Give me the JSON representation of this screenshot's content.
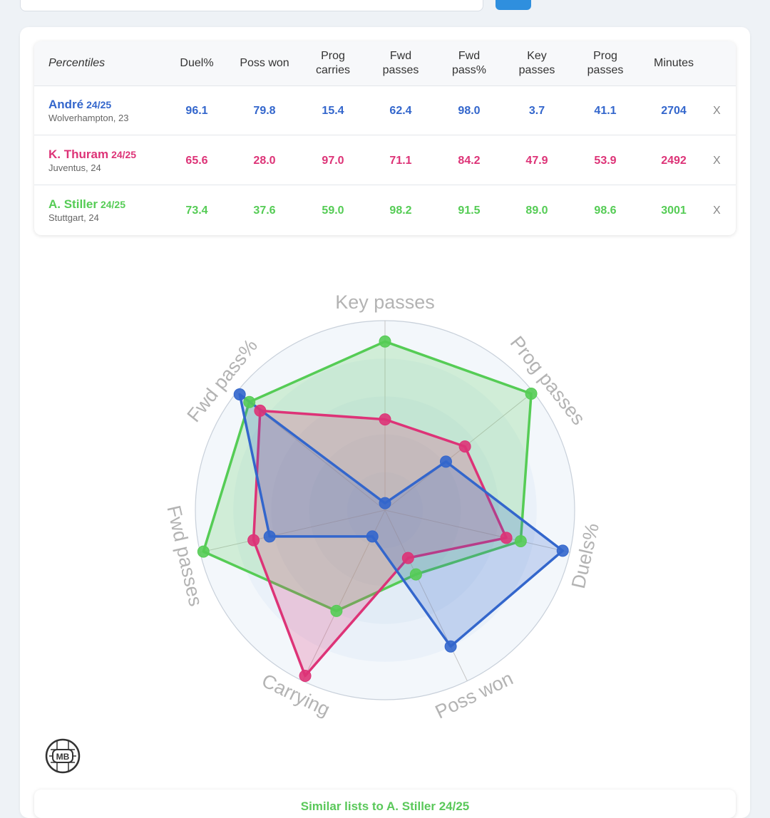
{
  "colors": {
    "andre": "#3366cc",
    "thuram": "#dd3377",
    "stiller": "#55cc55"
  },
  "table": {
    "corner_label": "Percentiles",
    "headers": [
      [
        "Duel%"
      ],
      [
        "Poss won"
      ],
      [
        "Prog",
        "carries"
      ],
      [
        "Fwd",
        "passes"
      ],
      [
        "Fwd",
        "pass%"
      ],
      [
        "Key",
        "passes"
      ],
      [
        "Prog",
        "passes"
      ],
      [
        "Minutes"
      ]
    ],
    "remove_label": "X",
    "rows": [
      {
        "name": "André",
        "season": "24/25",
        "club": "Wolverhampton, 23",
        "values": [
          "96.1",
          "79.8",
          "15.4",
          "62.4",
          "98.0",
          "3.7",
          "41.1",
          "2704"
        ]
      },
      {
        "name": "K. Thuram",
        "season": "24/25",
        "club": "Juventus, 24",
        "values": [
          "65.6",
          "28.0",
          "97.0",
          "71.1",
          "84.2",
          "47.9",
          "53.9",
          "2492"
        ]
      },
      {
        "name": "A. Stiller",
        "season": "24/25",
        "club": "Stuttgart, 24",
        "values": [
          "73.4",
          "37.6",
          "59.0",
          "98.2",
          "91.5",
          "89.0",
          "98.6",
          "3001"
        ]
      }
    ]
  },
  "chart_data": {
    "type": "radar",
    "axes": [
      "Key passes",
      "Prog passes",
      "Duels%",
      "Poss won",
      "Carrying",
      "Fwd passes",
      "Fwd pass%"
    ],
    "range": [
      0,
      100
    ],
    "series": [
      {
        "name": "André",
        "color": "#3366cc",
        "values": [
          3.7,
          41.1,
          96.1,
          79.8,
          15.4,
          62.4,
          98.0
        ]
      },
      {
        "name": "K. Thuram",
        "color": "#dd3377",
        "values": [
          47.9,
          53.9,
          65.6,
          28.0,
          97.0,
          71.1,
          84.2
        ]
      },
      {
        "name": "A. Stiller",
        "color": "#55cc55",
        "values": [
          89.0,
          98.6,
          73.4,
          37.6,
          59.0,
          98.2,
          91.5
        ]
      }
    ]
  },
  "logo": {
    "text": "MB"
  },
  "similar": {
    "title": "Similar lists to A. Stiller 24/25"
  }
}
